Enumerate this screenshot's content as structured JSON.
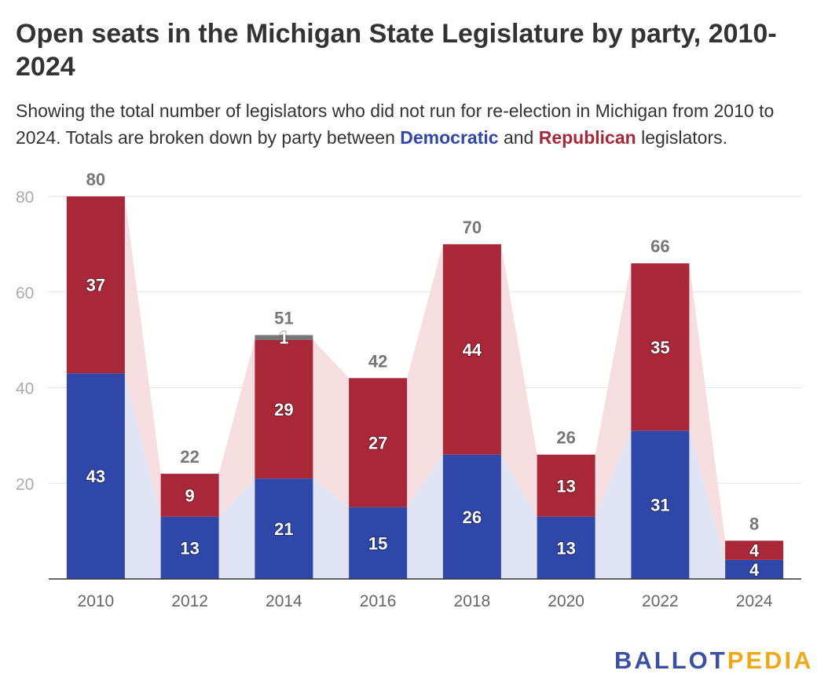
{
  "title": "Open seats in the Michigan State Legislature by party, 2010-2024",
  "subtitle": {
    "part1": "Showing the total number of legislators who did not run for re-election in Michigan from 2010 to 2024. Totals are broken down by party between ",
    "dem_word": "Democratic",
    "part2": " and ",
    "rep_word": "Republican",
    "part3": " legislators."
  },
  "logo": {
    "part1": "BALLOT",
    "part2": "PEDIA"
  },
  "colors": {
    "democratic": "#2f47a8",
    "republican": "#a8283a",
    "other": "#777777",
    "dem_area": "#dfe3f3",
    "rep_area": "#f5dde0",
    "grid": "#e3e3e3",
    "axis_text": "#aaaaaa",
    "total_text": "#777777"
  },
  "chart_data": {
    "type": "bar",
    "stacked": true,
    "categories": [
      "2010",
      "2012",
      "2014",
      "2016",
      "2018",
      "2020",
      "2022",
      "2024"
    ],
    "series": [
      {
        "name": "Democratic",
        "values": [
          43,
          13,
          21,
          15,
          26,
          13,
          31,
          4
        ]
      },
      {
        "name": "Republican",
        "values": [
          37,
          9,
          29,
          27,
          44,
          13,
          35,
          4
        ]
      },
      {
        "values": [
          0,
          0,
          1,
          0,
          0,
          0,
          0,
          0
        ]
      }
    ],
    "totals": [
      80,
      22,
      51,
      42,
      70,
      26,
      66,
      8
    ],
    "ylim": [
      0,
      80
    ],
    "yticks": [
      20,
      40,
      60,
      80
    ],
    "grid": true,
    "xlabel": "",
    "ylabel": ""
  }
}
